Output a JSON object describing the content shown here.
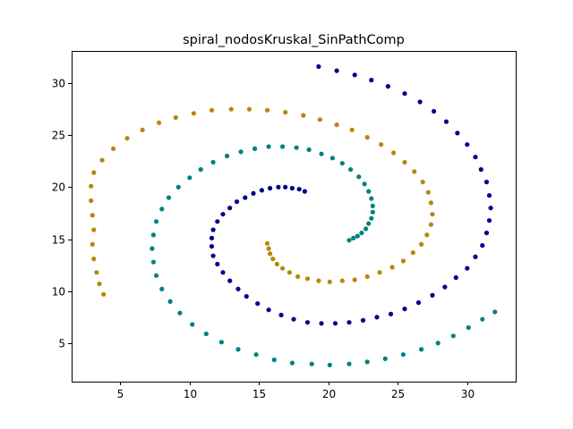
{
  "chart_data": {
    "type": "scatter",
    "title": "spiral_nodosKruskal_SinPathComp",
    "xlabel": "",
    "ylabel": "",
    "xlim": [
      1.5,
      33.5
    ],
    "ylim": [
      1.3,
      33.1
    ],
    "xticks": [
      5,
      10,
      15,
      20,
      25,
      30
    ],
    "yticks": [
      5,
      10,
      15,
      20,
      25,
      30
    ],
    "grid": false,
    "series": [
      {
        "color": "#00008b",
        "points": [
          [
            18.3,
            19.6
          ],
          [
            17.9,
            19.8
          ],
          [
            17.4,
            19.9
          ],
          [
            16.9,
            20.0
          ],
          [
            16.4,
            20.0
          ],
          [
            15.8,
            19.9
          ],
          [
            15.2,
            19.7
          ],
          [
            14.6,
            19.4
          ],
          [
            14.0,
            19.0
          ],
          [
            13.4,
            18.6
          ],
          [
            12.9,
            18.0
          ],
          [
            12.4,
            17.4
          ],
          [
            12.0,
            16.7
          ],
          [
            11.7,
            15.9
          ],
          [
            11.6,
            15.1
          ],
          [
            11.6,
            14.3
          ],
          [
            11.7,
            13.4
          ],
          [
            12.0,
            12.6
          ],
          [
            12.4,
            11.8
          ],
          [
            12.9,
            11.0
          ],
          [
            13.5,
            10.2
          ],
          [
            14.1,
            9.5
          ],
          [
            14.9,
            8.8
          ],
          [
            15.7,
            8.2
          ],
          [
            16.6,
            7.7
          ],
          [
            17.5,
            7.3
          ],
          [
            18.5,
            7.0
          ],
          [
            19.5,
            6.9
          ],
          [
            20.5,
            6.9
          ],
          [
            21.5,
            7.0
          ],
          [
            22.5,
            7.2
          ],
          [
            23.5,
            7.5
          ],
          [
            24.5,
            7.8
          ],
          [
            25.5,
            8.3
          ],
          [
            26.5,
            8.9
          ],
          [
            27.5,
            9.6
          ],
          [
            28.4,
            10.4
          ],
          [
            29.2,
            11.3
          ],
          [
            30.0,
            12.2
          ],
          [
            30.6,
            13.3
          ],
          [
            31.1,
            14.4
          ],
          [
            31.4,
            15.6
          ],
          [
            31.6,
            16.8
          ],
          [
            31.7,
            18.0
          ],
          [
            31.6,
            19.2
          ],
          [
            31.4,
            20.5
          ],
          [
            31.0,
            21.7
          ],
          [
            30.6,
            22.9
          ],
          [
            30.0,
            24.1
          ],
          [
            29.3,
            25.2
          ],
          [
            28.5,
            26.3
          ],
          [
            27.6,
            27.3
          ],
          [
            26.6,
            28.2
          ],
          [
            25.5,
            29.0
          ],
          [
            24.3,
            29.7
          ],
          [
            23.1,
            30.3
          ],
          [
            21.9,
            30.8
          ],
          [
            20.6,
            31.2
          ],
          [
            19.3,
            31.6
          ]
        ]
      },
      {
        "color": "#008080",
        "points": [
          [
            21.5,
            14.9
          ],
          [
            21.8,
            15.1
          ],
          [
            22.1,
            15.3
          ],
          [
            22.4,
            15.6
          ],
          [
            22.7,
            16.0
          ],
          [
            22.9,
            16.5
          ],
          [
            23.1,
            17.0
          ],
          [
            23.2,
            17.6
          ],
          [
            23.2,
            18.2
          ],
          [
            23.1,
            18.9
          ],
          [
            22.9,
            19.6
          ],
          [
            22.6,
            20.3
          ],
          [
            22.2,
            21.0
          ],
          [
            21.6,
            21.7
          ],
          [
            21.0,
            22.3
          ],
          [
            20.3,
            22.8
          ],
          [
            19.5,
            23.2
          ],
          [
            18.6,
            23.6
          ],
          [
            17.7,
            23.8
          ],
          [
            16.7,
            23.9
          ],
          [
            15.7,
            23.9
          ],
          [
            14.7,
            23.7
          ],
          [
            13.7,
            23.4
          ],
          [
            12.7,
            23.0
          ],
          [
            11.7,
            22.4
          ],
          [
            10.8,
            21.7
          ],
          [
            10.0,
            20.9
          ],
          [
            9.2,
            20.0
          ],
          [
            8.5,
            19.0
          ],
          [
            8.0,
            17.9
          ],
          [
            7.6,
            16.7
          ],
          [
            7.4,
            15.4
          ],
          [
            7.3,
            14.1
          ],
          [
            7.4,
            12.8
          ],
          [
            7.6,
            11.5
          ],
          [
            8.0,
            10.2
          ],
          [
            8.6,
            9.0
          ],
          [
            9.3,
            7.9
          ],
          [
            10.2,
            6.8
          ],
          [
            11.2,
            5.9
          ],
          [
            12.3,
            5.1
          ],
          [
            13.5,
            4.4
          ],
          [
            14.8,
            3.9
          ],
          [
            16.1,
            3.4
          ],
          [
            17.4,
            3.1
          ],
          [
            18.8,
            3.0
          ],
          [
            20.1,
            2.9
          ],
          [
            21.5,
            3.0
          ],
          [
            22.8,
            3.2
          ],
          [
            24.1,
            3.5
          ],
          [
            25.4,
            3.9
          ],
          [
            26.7,
            4.4
          ],
          [
            27.9,
            5.0
          ],
          [
            29.0,
            5.7
          ],
          [
            30.1,
            6.5
          ],
          [
            31.1,
            7.3
          ],
          [
            32.0,
            8.0
          ]
        ]
      },
      {
        "color": "#b8860b",
        "points": [
          [
            15.6,
            14.6
          ],
          [
            15.7,
            14.1
          ],
          [
            15.8,
            13.6
          ],
          [
            16.0,
            13.1
          ],
          [
            16.3,
            12.6
          ],
          [
            16.7,
            12.2
          ],
          [
            17.2,
            11.8
          ],
          [
            17.8,
            11.4
          ],
          [
            18.5,
            11.2
          ],
          [
            19.3,
            11.0
          ],
          [
            20.1,
            10.9
          ],
          [
            21.0,
            11.0
          ],
          [
            21.9,
            11.1
          ],
          [
            22.8,
            11.4
          ],
          [
            23.7,
            11.8
          ],
          [
            24.6,
            12.3
          ],
          [
            25.4,
            12.9
          ],
          [
            26.1,
            13.7
          ],
          [
            26.7,
            14.5
          ],
          [
            27.1,
            15.4
          ],
          [
            27.4,
            16.4
          ],
          [
            27.5,
            17.4
          ],
          [
            27.4,
            18.5
          ],
          [
            27.2,
            19.5
          ],
          [
            26.8,
            20.5
          ],
          [
            26.2,
            21.5
          ],
          [
            25.5,
            22.4
          ],
          [
            24.7,
            23.3
          ],
          [
            23.8,
            24.1
          ],
          [
            22.8,
            24.8
          ],
          [
            21.7,
            25.5
          ],
          [
            20.6,
            26.0
          ],
          [
            19.4,
            26.5
          ],
          [
            18.2,
            26.9
          ],
          [
            16.9,
            27.2
          ],
          [
            15.6,
            27.4
          ],
          [
            14.3,
            27.5
          ],
          [
            13.0,
            27.5
          ],
          [
            11.6,
            27.4
          ],
          [
            10.3,
            27.1
          ],
          [
            9.0,
            26.7
          ],
          [
            7.8,
            26.2
          ],
          [
            6.6,
            25.5
          ],
          [
            5.5,
            24.7
          ],
          [
            4.5,
            23.7
          ],
          [
            3.7,
            22.6
          ],
          [
            3.1,
            21.4
          ],
          [
            2.9,
            20.1
          ],
          [
            2.9,
            18.7
          ],
          [
            3.0,
            17.3
          ],
          [
            3.1,
            15.9
          ],
          [
            3.0,
            14.5
          ],
          [
            3.1,
            13.1
          ],
          [
            3.3,
            11.8
          ],
          [
            3.5,
            10.7
          ],
          [
            3.8,
            9.7
          ]
        ]
      }
    ]
  }
}
